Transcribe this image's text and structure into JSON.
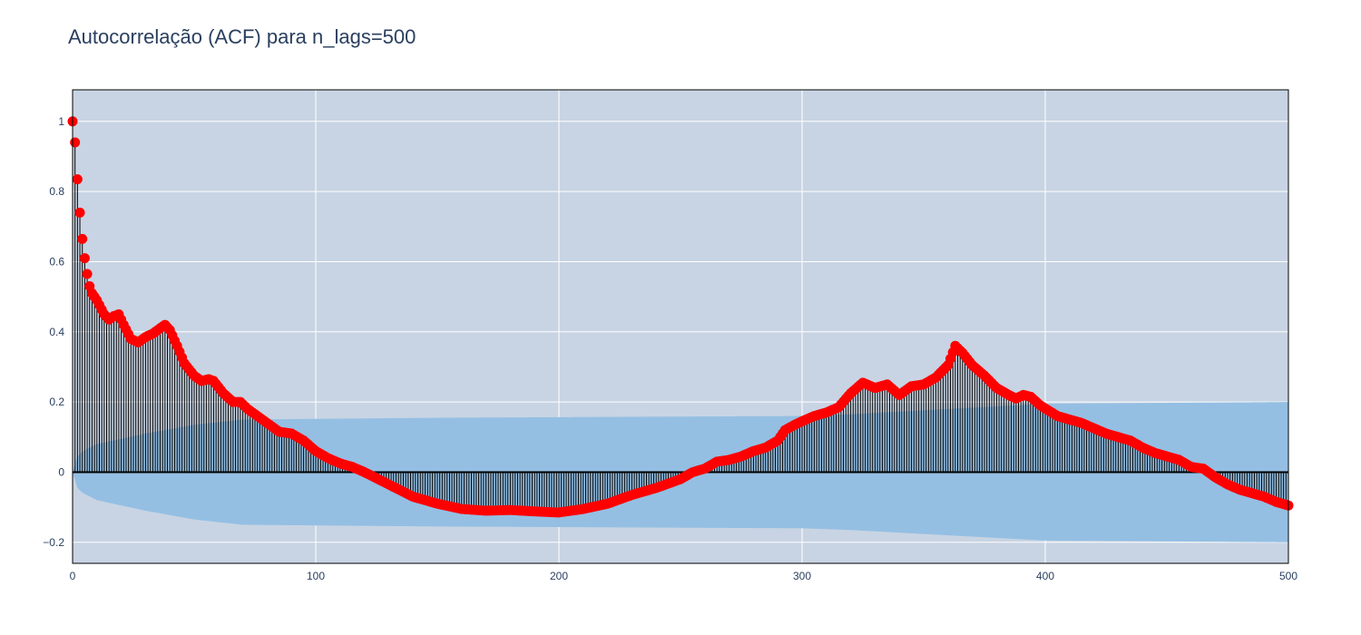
{
  "chart_data": {
    "type": "line",
    "title": "Autocorrelação (ACF) para n_lags=500",
    "xlim": [
      0,
      500
    ],
    "ylim": [
      -0.26,
      1.09
    ],
    "x_ticks": [
      0,
      100,
      200,
      300,
      400,
      500
    ],
    "y_ticks": [
      -0.2,
      0,
      0.2,
      0.4,
      0.6,
      0.8,
      1
    ],
    "y_tick_labels": [
      "−0.2",
      "0",
      "0.2",
      "0.4",
      "0.6",
      "0.8",
      "1"
    ],
    "grid": true,
    "acf_keypoints": [
      [
        0,
        1.0
      ],
      [
        1,
        0.94
      ],
      [
        2,
        0.835
      ],
      [
        3,
        0.74
      ],
      [
        4,
        0.665
      ],
      [
        5,
        0.61
      ],
      [
        6,
        0.565
      ],
      [
        7,
        0.53
      ],
      [
        8,
        0.51
      ],
      [
        10,
        0.49
      ],
      [
        13,
        0.45
      ],
      [
        15,
        0.435
      ],
      [
        17,
        0.445
      ],
      [
        19,
        0.45
      ],
      [
        21,
        0.42
      ],
      [
        24,
        0.38
      ],
      [
        27,
        0.37
      ],
      [
        30,
        0.385
      ],
      [
        33,
        0.395
      ],
      [
        36,
        0.41
      ],
      [
        38,
        0.42
      ],
      [
        40,
        0.405
      ],
      [
        43,
        0.36
      ],
      [
        46,
        0.31
      ],
      [
        50,
        0.275
      ],
      [
        53,
        0.26
      ],
      [
        56,
        0.265
      ],
      [
        58,
        0.26
      ],
      [
        62,
        0.225
      ],
      [
        66,
        0.2
      ],
      [
        69,
        0.2
      ],
      [
        72,
        0.18
      ],
      [
        76,
        0.16
      ],
      [
        80,
        0.14
      ],
      [
        85,
        0.115
      ],
      [
        90,
        0.11
      ],
      [
        95,
        0.09
      ],
      [
        100,
        0.06
      ],
      [
        105,
        0.04
      ],
      [
        110,
        0.025
      ],
      [
        115,
        0.015
      ],
      [
        120,
        0.0
      ],
      [
        130,
        -0.035
      ],
      [
        140,
        -0.07
      ],
      [
        150,
        -0.09
      ],
      [
        160,
        -0.105
      ],
      [
        170,
        -0.11
      ],
      [
        180,
        -0.108
      ],
      [
        190,
        -0.112
      ],
      [
        200,
        -0.115
      ],
      [
        210,
        -0.105
      ],
      [
        220,
        -0.09
      ],
      [
        230,
        -0.065
      ],
      [
        240,
        -0.045
      ],
      [
        250,
        -0.02
      ],
      [
        255,
        0.0
      ],
      [
        260,
        0.01
      ],
      [
        265,
        0.03
      ],
      [
        270,
        0.035
      ],
      [
        275,
        0.045
      ],
      [
        280,
        0.06
      ],
      [
        285,
        0.07
      ],
      [
        290,
        0.09
      ],
      [
        293,
        0.12
      ],
      [
        297,
        0.135
      ],
      [
        300,
        0.145
      ],
      [
        305,
        0.16
      ],
      [
        310,
        0.17
      ],
      [
        315,
        0.185
      ],
      [
        320,
        0.225
      ],
      [
        325,
        0.255
      ],
      [
        330,
        0.24
      ],
      [
        335,
        0.25
      ],
      [
        340,
        0.22
      ],
      [
        345,
        0.245
      ],
      [
        350,
        0.25
      ],
      [
        355,
        0.27
      ],
      [
        360,
        0.305
      ],
      [
        363,
        0.36
      ],
      [
        366,
        0.34
      ],
      [
        370,
        0.305
      ],
      [
        375,
        0.275
      ],
      [
        380,
        0.24
      ],
      [
        385,
        0.22
      ],
      [
        388,
        0.21
      ],
      [
        391,
        0.22
      ],
      [
        394,
        0.215
      ],
      [
        398,
        0.19
      ],
      [
        405,
        0.16
      ],
      [
        410,
        0.15
      ],
      [
        415,
        0.14
      ],
      [
        420,
        0.125
      ],
      [
        425,
        0.11
      ],
      [
        430,
        0.1
      ],
      [
        435,
        0.09
      ],
      [
        440,
        0.07
      ],
      [
        445,
        0.055
      ],
      [
        450,
        0.045
      ],
      [
        455,
        0.035
      ],
      [
        460,
        0.015
      ],
      [
        465,
        0.01
      ],
      [
        470,
        -0.015
      ],
      [
        475,
        -0.035
      ],
      [
        480,
        -0.05
      ],
      [
        485,
        -0.06
      ],
      [
        490,
        -0.07
      ],
      [
        495,
        -0.085
      ],
      [
        500,
        -0.095
      ]
    ],
    "confidence_band_upper": [
      [
        0,
        0.0
      ],
      [
        1,
        0.035
      ],
      [
        3,
        0.055
      ],
      [
        10,
        0.08
      ],
      [
        30,
        0.11
      ],
      [
        50,
        0.135
      ],
      [
        70,
        0.15
      ],
      [
        150,
        0.155
      ],
      [
        300,
        0.16
      ],
      [
        320,
        0.165
      ],
      [
        360,
        0.18
      ],
      [
        400,
        0.195
      ],
      [
        500,
        0.2
      ]
    ],
    "colors": {
      "plot_bg": "#c8d4e3",
      "grid": "#ffffff",
      "stem": "#000000",
      "marker": "#ff0000",
      "band": "#94bfe3",
      "title": "#2a3f5f"
    }
  }
}
